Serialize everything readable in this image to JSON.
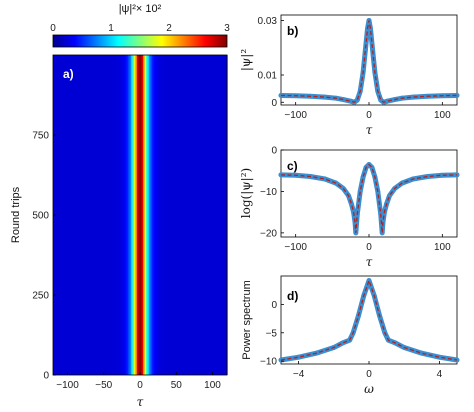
{
  "colorbar": {
    "label": "|ψ|²× 10²",
    "ticks": [
      "0",
      "1",
      "2",
      "3"
    ],
    "range": [
      0,
      3
    ],
    "colormap": "jet"
  },
  "chart_data": [
    {
      "id": "a",
      "panel_label": "a)",
      "type": "heatmap",
      "xlabel": "τ",
      "ylabel": "Round trips",
      "xlim": [
        -120,
        120
      ],
      "ylim": [
        0,
        1000
      ],
      "xticks": [
        -100,
        -50,
        0,
        50,
        100
      ],
      "yticks": [
        0,
        250,
        500,
        750
      ],
      "field": {
        "peak": 3.0,
        "center": 0,
        "width": 9,
        "background": 0.25
      }
    },
    {
      "id": "b",
      "panel_label": "b)",
      "type": "line",
      "xlabel": "τ",
      "ylabel": "|ψ|²",
      "xlim": [
        -120,
        120
      ],
      "ylim": [
        -0.001,
        0.032
      ],
      "xticks": [
        -100,
        0,
        100
      ],
      "yticks": [
        0,
        0.01,
        0.03
      ],
      "x": [
        -120,
        -100,
        -80,
        -60,
        -45,
        -35,
        -25,
        -20,
        -16,
        -12,
        -8,
        -5,
        -2,
        0,
        2,
        5,
        8,
        12,
        16,
        20,
        25,
        35,
        45,
        60,
        80,
        100,
        120
      ],
      "y": [
        0.0025,
        0.0024,
        0.0022,
        0.0019,
        0.0015,
        0.001,
        0.0004,
        0.0,
        0.0008,
        0.004,
        0.011,
        0.019,
        0.027,
        0.03,
        0.027,
        0.019,
        0.011,
        0.004,
        0.0008,
        0.0,
        0.0004,
        0.001,
        0.0015,
        0.0019,
        0.0022,
        0.0024,
        0.0025
      ]
    },
    {
      "id": "c",
      "panel_label": "c)",
      "type": "line",
      "xlabel": "τ",
      "ylabel": "log(|ψ|²)",
      "xlim": [
        -120,
        120
      ],
      "ylim": [
        -21,
        0
      ],
      "xticks": [
        -100,
        0,
        100
      ],
      "yticks": [
        -20,
        -10,
        0
      ],
      "x": [
        -120,
        -100,
        -80,
        -60,
        -45,
        -35,
        -28,
        -24,
        -21,
        -19,
        -18,
        -16,
        -12,
        -8,
        -4,
        0,
        4,
        8,
        12,
        16,
        18,
        19,
        21,
        24,
        28,
        35,
        45,
        60,
        80,
        100,
        120
      ],
      "y": [
        -6.0,
        -6.1,
        -6.4,
        -7.0,
        -8.0,
        -9.3,
        -11.0,
        -13.0,
        -15.0,
        -17.5,
        -20.0,
        -15.5,
        -10.0,
        -6.5,
        -4.2,
        -3.5,
        -4.2,
        -6.5,
        -10.0,
        -15.5,
        -20.0,
        -17.5,
        -15.0,
        -13.0,
        -11.0,
        -9.3,
        -8.0,
        -7.0,
        -6.4,
        -6.1,
        -6.0
      ]
    },
    {
      "id": "d",
      "panel_label": "d)",
      "type": "line",
      "xlabel": "ω",
      "ylabel": "Power spectrum",
      "xlim": [
        -5,
        5
      ],
      "ylim": [
        -10.5,
        5
      ],
      "xticks": [
        -4,
        0,
        4
      ],
      "yticks": [
        -10,
        -5,
        0
      ],
      "x": [
        -5,
        -4,
        -3,
        -2,
        -1.5,
        -1.1,
        -0.9,
        -0.6,
        -0.3,
        0,
        0.3,
        0.6,
        0.9,
        1.1,
        1.5,
        2,
        3,
        4,
        5
      ],
      "y": [
        -9.8,
        -9.3,
        -8.6,
        -7.6,
        -6.8,
        -6.3,
        -5.0,
        -2.0,
        1.5,
        4.2,
        1.5,
        -2.0,
        -5.0,
        -6.3,
        -6.8,
        -7.6,
        -8.6,
        -9.3,
        -9.8
      ]
    }
  ]
}
